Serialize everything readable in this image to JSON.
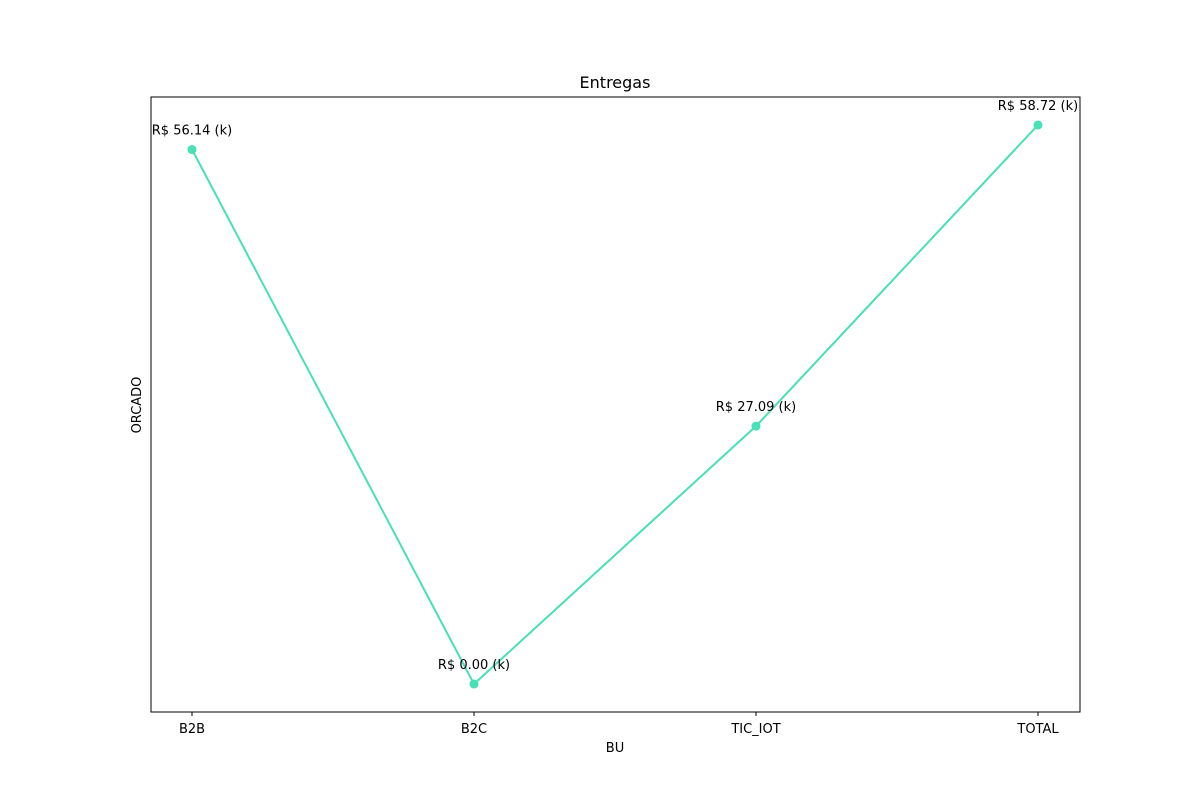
{
  "chart_data": {
    "type": "line",
    "title": "Entregas",
    "xlabel": "BU",
    "ylabel": "ORCADO",
    "categories": [
      "B2B",
      "B2C",
      "TIC_IOT",
      "TOTAL"
    ],
    "series": [
      {
        "values": [
          56.14,
          0.0,
          27.09,
          58.72
        ],
        "data_labels": [
          "R$ 56.14 (k)",
          "R$ 0.00 (k)",
          "R$ 27.09 (k)",
          "R$ 58.72 (k)"
        ],
        "color": "#48e0b6",
        "marker": "circle"
      }
    ],
    "ylim": [
      -2.936,
      61.656
    ],
    "y_ticks_visible": false,
    "grid": false,
    "legend": "none"
  }
}
